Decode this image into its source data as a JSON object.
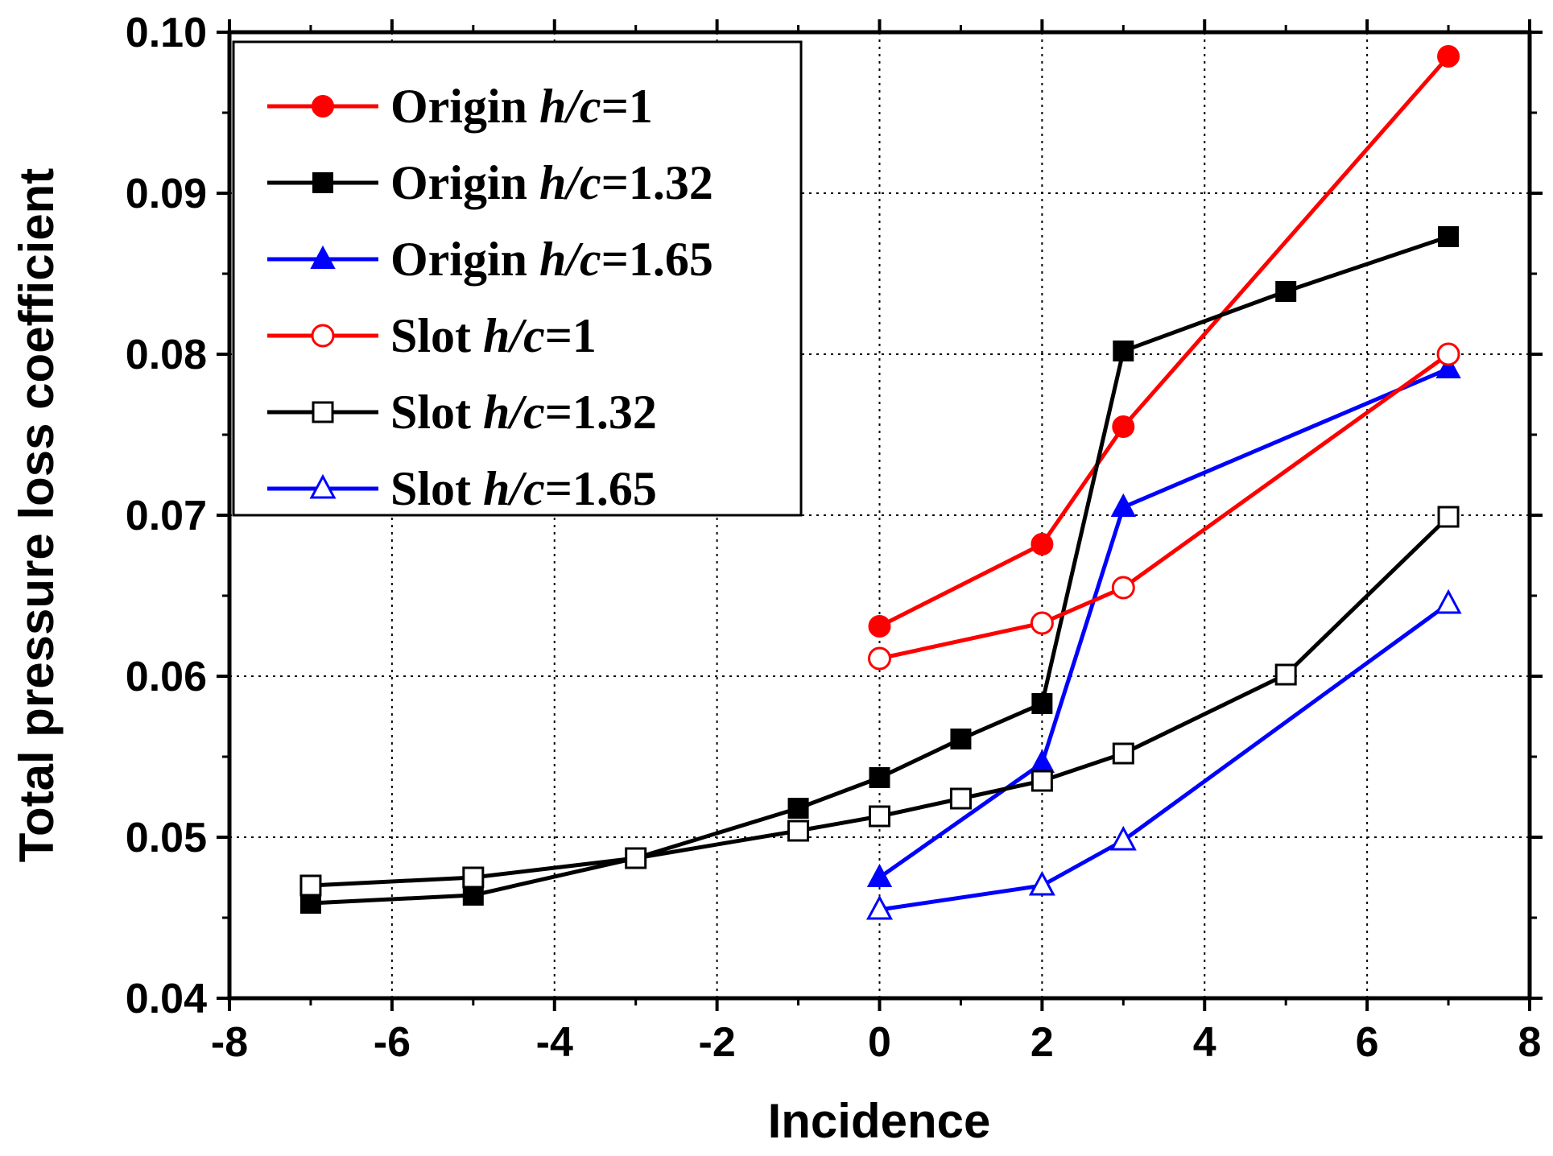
{
  "chart_data": {
    "type": "line",
    "title": "",
    "xlabel": "Incidence",
    "ylabel": "Total pressure loss coefficient",
    "xlim": [
      -8,
      8
    ],
    "ylim": [
      0.04,
      0.1
    ],
    "xticks": [
      -8,
      -6,
      -4,
      -2,
      0,
      2,
      4,
      6,
      8
    ],
    "xtick_labels": [
      "-8",
      "-6",
      "-4",
      "-2",
      "0",
      "2",
      "4",
      "6",
      "8"
    ],
    "yticks": [
      0.04,
      0.05,
      0.06,
      0.07,
      0.08,
      0.09,
      0.1
    ],
    "ytick_labels": [
      "0.04",
      "0.05",
      "0.06",
      "0.07",
      "0.08",
      "0.09",
      "0.10"
    ],
    "grid": true,
    "legend_position": "top-left",
    "series": [
      {
        "name": "Origin h/c=1",
        "legend_prefix": "Origin ",
        "legend_italic": "h/c",
        "legend_suffix": "=1",
        "color": "#ff0000",
        "marker": "circle",
        "filled": true,
        "x": [
          0,
          2,
          3,
          7
        ],
        "y": [
          0.0631,
          0.0682,
          0.0755,
          0.0985
        ]
      },
      {
        "name": "Origin h/c=1.32",
        "legend_prefix": "Origin ",
        "legend_italic": "h/c",
        "legend_suffix": "=1.32",
        "color": "#000000",
        "marker": "square",
        "filled": true,
        "x": [
          -7,
          -5,
          -3,
          -1,
          0,
          1,
          2,
          3,
          5,
          7
        ],
        "y": [
          0.0459,
          0.0464,
          0.0487,
          0.0518,
          0.0537,
          0.0561,
          0.0583,
          0.0802,
          0.0839,
          0.0873
        ]
      },
      {
        "name": "Origin h/c=1.65",
        "legend_prefix": "Origin ",
        "legend_italic": "h/c",
        "legend_suffix": "=1.65",
        "color": "#0000ff",
        "marker": "triangle",
        "filled": true,
        "x": [
          0,
          2,
          3,
          7
        ],
        "y": [
          0.0475,
          0.0546,
          0.0705,
          0.0791
        ]
      },
      {
        "name": "Slot h/c=1",
        "legend_prefix": "Slot ",
        "legend_italic": "h/c",
        "legend_suffix": "=1",
        "color": "#ff0000",
        "marker": "circle",
        "filled": false,
        "x": [
          0,
          2,
          3,
          7
        ],
        "y": [
          0.0611,
          0.0633,
          0.0655,
          0.08
        ]
      },
      {
        "name": "Slot h/c=1.32",
        "legend_prefix": "Slot ",
        "legend_italic": "h/c",
        "legend_suffix": "=1.32",
        "color": "#000000",
        "marker": "square",
        "filled": false,
        "x": [
          -7,
          -5,
          -3,
          -1,
          0,
          1,
          2,
          3,
          5,
          7
        ],
        "y": [
          0.047,
          0.0475,
          0.0487,
          0.0504,
          0.0513,
          0.0524,
          0.0535,
          0.0552,
          0.0601,
          0.0699
        ]
      },
      {
        "name": "Slot h/c=1.65",
        "legend_prefix": "Slot ",
        "legend_italic": "h/c",
        "legend_suffix": "=1.65",
        "color": "#0000ff",
        "marker": "triangle",
        "filled": false,
        "x": [
          0,
          2,
          3,
          7
        ],
        "y": [
          0.0455,
          0.047,
          0.0498,
          0.0645
        ]
      }
    ]
  }
}
